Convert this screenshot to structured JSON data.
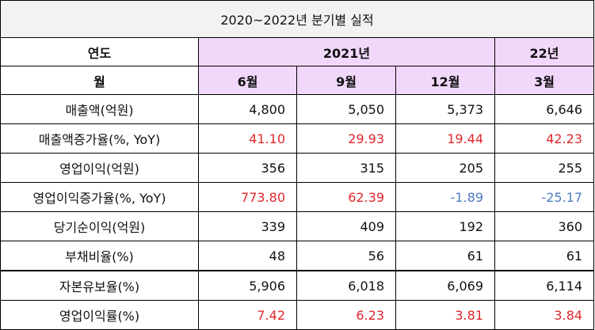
{
  "title": "2020~2022년 분기별 실적",
  "header": {
    "year_label": "연도",
    "year_2021": "2021년",
    "year_22": "22년",
    "month_label": "월",
    "months": [
      "6월",
      "9월",
      "12월",
      "3월"
    ]
  },
  "rows": [
    {
      "label": "매출액(억원)",
      "values": [
        "4,800",
        "5,050",
        "5,373",
        "6,646"
      ],
      "colors": [
        "normal",
        "normal",
        "normal",
        "normal"
      ]
    },
    {
      "label": "매출액증가율(%, YoY)",
      "values": [
        "41.10",
        "29.93",
        "19.44",
        "42.23"
      ],
      "colors": [
        "red",
        "red",
        "red",
        "red"
      ]
    },
    {
      "label": "영업이익(억원)",
      "values": [
        "356",
        "315",
        "205",
        "255"
      ],
      "colors": [
        "normal",
        "normal",
        "normal",
        "normal"
      ]
    },
    {
      "label": "영업이익증가율(%, YoY)",
      "values": [
        "773.80",
        "62.39",
        "-1.89",
        "-25.17"
      ],
      "colors": [
        "red",
        "red",
        "blue",
        "blue"
      ]
    },
    {
      "label": "당기순이익(억원)",
      "values": [
        "339",
        "409",
        "192",
        "360"
      ],
      "colors": [
        "normal",
        "normal",
        "normal",
        "normal"
      ]
    },
    {
      "label": "부채비율(%)",
      "values": [
        "48",
        "56",
        "61",
        "61"
      ],
      "colors": [
        "normal",
        "normal",
        "normal",
        "normal"
      ]
    },
    {
      "label": "자본유보율(%)",
      "values": [
        "5,906",
        "6,018",
        "6,069",
        "6,114"
      ],
      "colors": [
        "normal",
        "normal",
        "normal",
        "normal"
      ]
    },
    {
      "label": "영업이익률(%)",
      "values": [
        "7.42",
        "6.23",
        "3.81",
        "3.84"
      ],
      "colors": [
        "red",
        "red",
        "red",
        "red"
      ]
    }
  ],
  "colors": {
    "header_fill": "#f1d8fb",
    "caption_fill": "#f2f2f2",
    "positive": "#e0272b",
    "negative": "#4f7cc0"
  }
}
